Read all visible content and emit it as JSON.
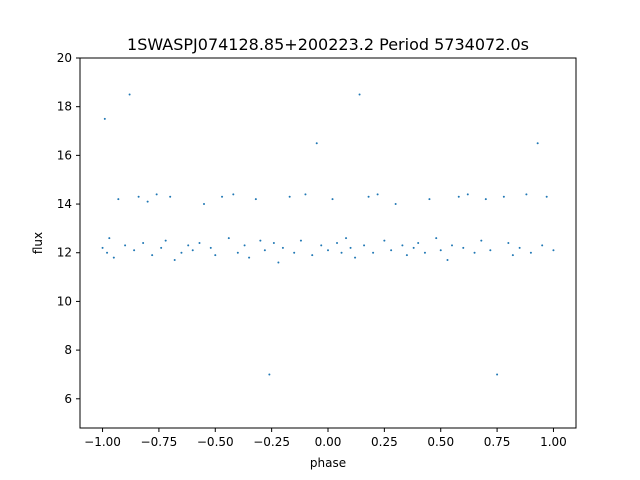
{
  "chart_data": {
    "type": "scatter",
    "title": "1SWASPJ074128.85+200223.2 Period 5734072.0s",
    "xlabel": "phase",
    "ylabel": "flux",
    "xlim": [
      -1.1,
      1.1
    ],
    "ylim": [
      4.8,
      20
    ],
    "xticks": [
      -1.0,
      -0.75,
      -0.5,
      -0.25,
      0.0,
      0.25,
      0.5,
      0.75,
      1.0
    ],
    "xtick_labels": [
      "−1.00",
      "−0.75",
      "−0.50",
      "−0.25",
      "0.00",
      "0.25",
      "0.50",
      "0.75",
      "1.00"
    ],
    "yticks": [
      6,
      8,
      10,
      12,
      14,
      16,
      18,
      20
    ],
    "ytick_labels": [
      "6",
      "8",
      "10",
      "12",
      "14",
      "16",
      "18",
      "20"
    ],
    "grid": false,
    "marker_color": "#1f77b4",
    "series": [
      {
        "x": [
          -1.0,
          -0.99,
          -0.98,
          -0.97,
          -0.95,
          -0.93,
          -0.9,
          -0.88,
          -0.86,
          -0.84,
          -0.82,
          -0.8,
          -0.78,
          -0.76,
          -0.74,
          -0.72,
          -0.7,
          -0.68,
          -0.65,
          -0.62,
          -0.6,
          -0.57,
          -0.55,
          -0.52,
          -0.5,
          -0.47,
          -0.44,
          -0.42,
          -0.4,
          -0.37,
          -0.35,
          -0.32,
          -0.3,
          -0.28,
          -0.26,
          -0.24,
          -0.22,
          -0.2,
          -0.17,
          -0.15,
          -0.12,
          -0.1,
          -0.07,
          -0.05,
          -0.03,
          0.0,
          0.02,
          0.04,
          0.06,
          0.08,
          0.1,
          0.12,
          0.14,
          0.16,
          0.18,
          0.2,
          0.22,
          0.25,
          0.28,
          0.3,
          0.33,
          0.35,
          0.38,
          0.4,
          0.43,
          0.45,
          0.48,
          0.5,
          0.53,
          0.55,
          0.58,
          0.6,
          0.62,
          0.65,
          0.68,
          0.7,
          0.72,
          0.75,
          0.78,
          0.8,
          0.82,
          0.85,
          0.88,
          0.9,
          0.93,
          0.95,
          0.97,
          1.0
        ],
        "y": [
          12.2,
          17.5,
          12.0,
          12.6,
          11.8,
          14.2,
          12.3,
          18.5,
          12.1,
          14.3,
          12.4,
          14.1,
          11.9,
          14.4,
          12.2,
          12.5,
          14.3,
          11.7,
          12.0,
          12.3,
          12.1,
          12.4,
          14.0,
          12.2,
          11.9,
          14.3,
          12.6,
          14.4,
          12.0,
          12.3,
          11.8,
          14.2,
          12.5,
          12.1,
          7.0,
          12.4,
          11.6,
          12.2,
          14.3,
          12.0,
          12.5,
          14.4,
          11.9,
          16.5,
          12.3,
          12.1,
          14.2,
          12.4,
          12.0,
          12.6,
          12.2,
          11.8,
          18.5,
          12.3,
          14.3,
          12.0,
          14.4,
          12.5,
          12.1,
          14.0,
          12.3,
          11.9,
          12.2,
          12.4,
          12.0,
          14.2,
          12.6,
          12.1,
          11.7,
          12.3,
          14.3,
          12.2,
          14.4,
          12.0,
          12.5,
          14.2,
          12.1,
          7.0,
          14.3,
          12.4,
          11.9,
          12.2,
          14.4,
          12.0,
          16.5,
          12.3,
          14.3,
          12.1
        ]
      }
    ]
  }
}
